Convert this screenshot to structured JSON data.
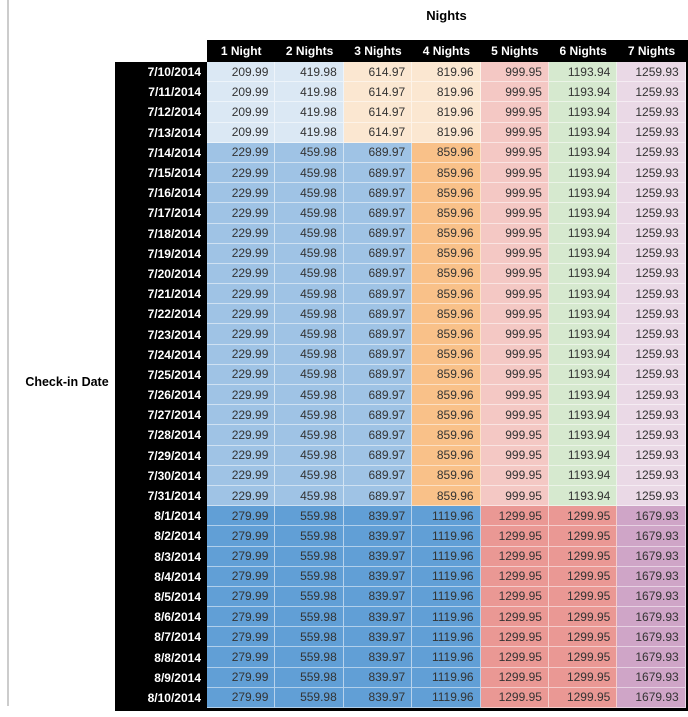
{
  "palette": {
    "header_bg": "#000000",
    "header_text": "#ffffff",
    "value_text": "#333333",
    "sheet_gridline": "#cccccc",
    "light_blue": "#DBE8F4",
    "light_orange": "#FBE7D1",
    "mid_blue": "#9FC3E5",
    "mid_orange": "#F9C189",
    "light_red": "#F4C8C4",
    "light_green": "#D6E9CF",
    "light_purple": "#EAD9E6",
    "dark_blue": "#619FD6",
    "mid_red": "#EA9894",
    "mid_purple": "#CFA5C7"
  },
  "chart_data": {
    "type": "table",
    "title": "Nights",
    "row_axis_label": "Check-in Date",
    "columns": [
      "1 Night",
      "2 Nights",
      "3 Nights",
      "4 Nights",
      "5 Nights",
      "6 Nights",
      "7 Nights"
    ],
    "row_groups": [
      {
        "dates": [
          "7/10/2014",
          "7/11/2014",
          "7/12/2014",
          "7/13/2014"
        ],
        "values": [
          209.99,
          419.98,
          614.97,
          819.96,
          999.95,
          1193.94,
          1259.93
        ],
        "color_keys": [
          "light_blue",
          "light_blue",
          "light_orange",
          "light_orange",
          "light_red",
          "light_green",
          "light_purple"
        ]
      },
      {
        "dates": [
          "7/14/2014",
          "7/15/2014",
          "7/16/2014",
          "7/17/2014",
          "7/18/2014",
          "7/19/2014",
          "7/20/2014",
          "7/21/2014",
          "7/22/2014",
          "7/23/2014",
          "7/24/2014",
          "7/25/2014",
          "7/26/2014",
          "7/27/2014",
          "7/28/2014",
          "7/29/2014",
          "7/30/2014",
          "7/31/2014"
        ],
        "values": [
          229.99,
          459.98,
          689.97,
          859.96,
          999.95,
          1193.94,
          1259.93
        ],
        "color_keys": [
          "mid_blue",
          "mid_blue",
          "mid_blue",
          "mid_orange",
          "light_red",
          "light_green",
          "light_purple"
        ]
      },
      {
        "dates": [
          "8/1/2014",
          "8/2/2014",
          "8/3/2014",
          "8/4/2014",
          "8/5/2014",
          "8/6/2014",
          "8/7/2014",
          "8/8/2014",
          "8/9/2014",
          "8/10/2014"
        ],
        "values": [
          279.99,
          559.98,
          839.97,
          1119.96,
          1299.95,
          1299.95,
          1679.93
        ],
        "color_keys": [
          "dark_blue",
          "dark_blue",
          "dark_blue",
          "dark_blue",
          "mid_red",
          "mid_red",
          "mid_purple"
        ]
      }
    ]
  }
}
